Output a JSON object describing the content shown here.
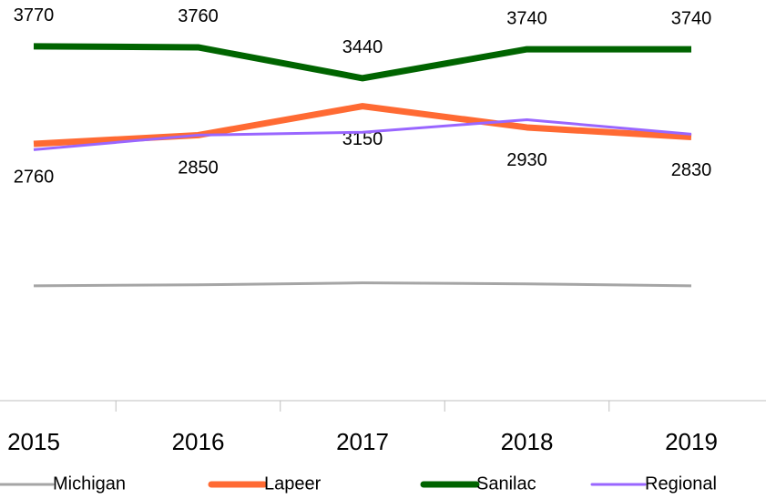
{
  "chart_data": {
    "type": "line",
    "categories": [
      "2015",
      "2016",
      "2017",
      "2018",
      "2019"
    ],
    "ylim": [
      100,
      4250
    ],
    "series": [
      {
        "name": "Michigan",
        "color": "#a5a5a5",
        "width": 3,
        "values": [
          1290,
          1300,
          1320,
          1310,
          1290
        ]
      },
      {
        "name": "Lapeer",
        "color": "#ff6a33",
        "width": 7,
        "values": [
          2760,
          2850,
          3150,
          2930,
          2830
        ],
        "label_position": "below"
      },
      {
        "name": "Sanilac",
        "color": "#006400",
        "width": 7,
        "values": [
          3770,
          3760,
          3440,
          3740,
          3740
        ],
        "label_position": "above"
      },
      {
        "name": "Regional",
        "color": "#9966ff",
        "width": 3,
        "values": [
          2700,
          2850,
          2880,
          3010,
          2860
        ]
      }
    ],
    "legend": "bottom"
  }
}
